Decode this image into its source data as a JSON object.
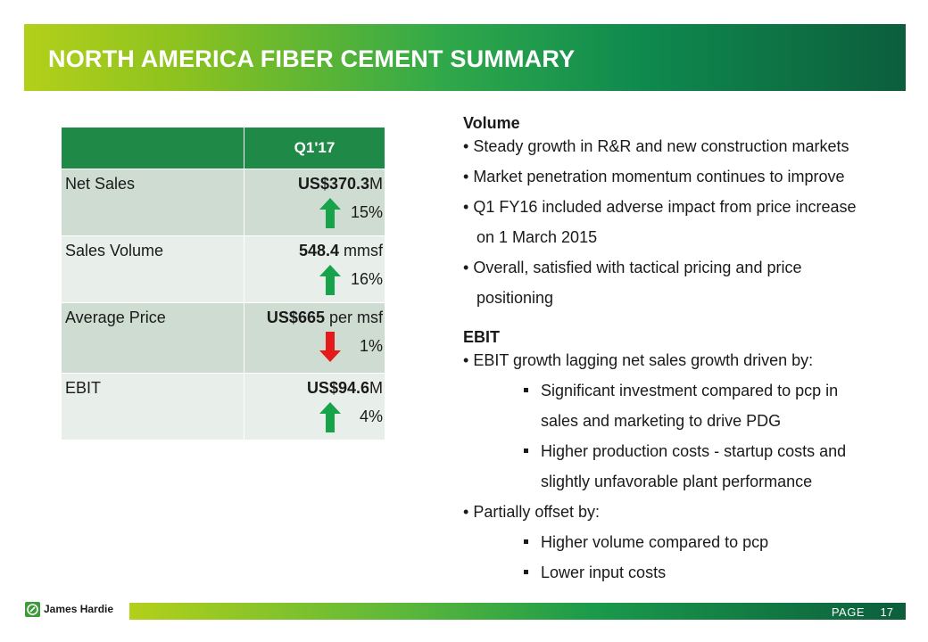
{
  "title": "NORTH AMERICA FIBER CEMENT SUMMARY",
  "table": {
    "header": "Q1'17",
    "rows": [
      {
        "label": "Net Sales",
        "value_bold": "US$370.3",
        "value_rest": "M",
        "pct": "15%",
        "direction": "up"
      },
      {
        "label": "Sales Volume",
        "value_bold": "548.4",
        "value_rest": " mmsf",
        "pct": "16%",
        "direction": "up"
      },
      {
        "label": "Average Price",
        "value_bold": "US$665",
        "value_rest": " per msf",
        "pct": "1%",
        "direction": "down"
      },
      {
        "label": "EBIT",
        "value_bold": "US$94.6",
        "value_rest": "M",
        "pct": "4%",
        "direction": "up"
      }
    ]
  },
  "volume": {
    "heading": "Volume",
    "b1": "Steady growth in R&R and new construction markets",
    "b2": "Market penetration momentum continues to improve",
    "b3a": "Q1 FY16 included adverse impact from price increase",
    "b3b": "on 1 March 2015",
    "b4a": "Overall, satisfied with tactical pricing and price",
    "b4b": "positioning"
  },
  "ebit": {
    "heading": "EBIT",
    "b1": "EBIT growth lagging net sales growth driven by:",
    "s1a": "Significant investment compared to pcp in",
    "s1b": "sales and marketing to drive PDG",
    "s2a": "Higher production costs - startup costs and",
    "s2b": "slightly unfavorable plant performance",
    "b2": "Partially offset by:",
    "s3": "Higher volume compared to pcp",
    "s4": "Lower input costs"
  },
  "footer": {
    "brand": "James Hardie",
    "page_label": "PAGE",
    "page_number": "17"
  },
  "colors": {
    "up_arrow": "#17a34a",
    "down_arrow": "#e51a1a"
  }
}
